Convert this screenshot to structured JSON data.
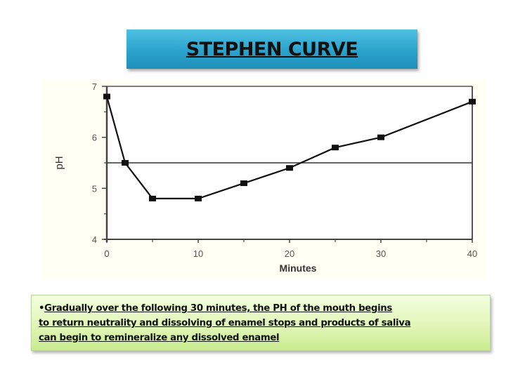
{
  "slide": {
    "title": "STEPHEN CURVE",
    "note": {
      "bullet": "•",
      "lines": [
        "Gradually over the following 30 minutes, the PH of the mouth begins",
        "to return neutrality and dissolving of enamel stops and products of saliva",
        "can begin to remineralize any dissolved enamel"
      ]
    },
    "colors": {
      "title_bg": "#2aa3cc",
      "note_bg": "#dff5b4",
      "line": "#111111"
    }
  },
  "chart_data": {
    "type": "line",
    "title": "",
    "xlabel": "Minutes",
    "ylabel": "pH",
    "x": [
      0,
      2,
      5,
      10,
      15,
      20,
      25,
      30,
      40
    ],
    "series": [
      {
        "name": "pH",
        "values": [
          6.8,
          5.5,
          4.8,
          4.8,
          5.1,
          5.4,
          5.8,
          6.0,
          6.7
        ]
      }
    ],
    "reference_line": {
      "y": 5.5
    },
    "xlim": [
      0,
      40
    ],
    "ylim": [
      4,
      7
    ],
    "xticks": [
      "0",
      "10",
      "20",
      "30",
      "40"
    ],
    "yticks": [
      "4",
      "5",
      "6",
      "7"
    ],
    "grid": false,
    "legend": false
  }
}
